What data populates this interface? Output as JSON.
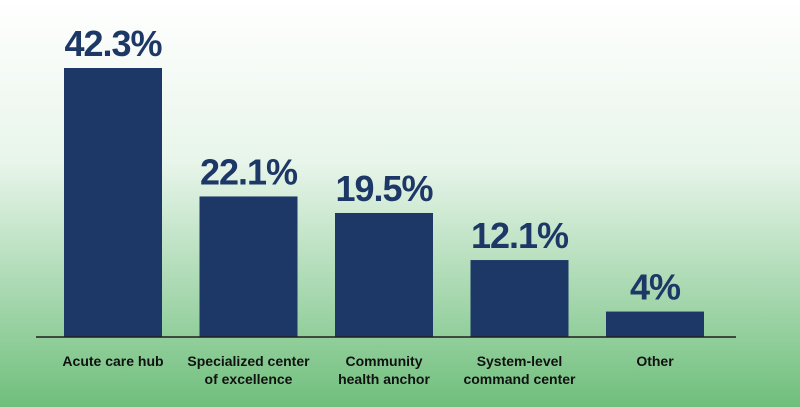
{
  "chart_data": {
    "type": "bar",
    "categories": [
      [
        "Acute care hub"
      ],
      [
        "Specialized center",
        "of excellence"
      ],
      [
        "Community",
        "health anchor"
      ],
      [
        "System-level",
        "command center"
      ],
      [
        "Other"
      ]
    ],
    "values": [
      42.3,
      22.1,
      19.5,
      12.1,
      4
    ],
    "value_labels": [
      "42.3%",
      "22.1%",
      "19.5%",
      "12.1%",
      "4%"
    ],
    "ylim": [
      0,
      42.3
    ],
    "grid": false,
    "legend": "none",
    "colors": {
      "bar": "#1d3766",
      "text": "#1d3766",
      "axis": "#1f1f1f",
      "bg_top": "#ffffff",
      "bg_bottom": "#6fbf7c"
    }
  }
}
